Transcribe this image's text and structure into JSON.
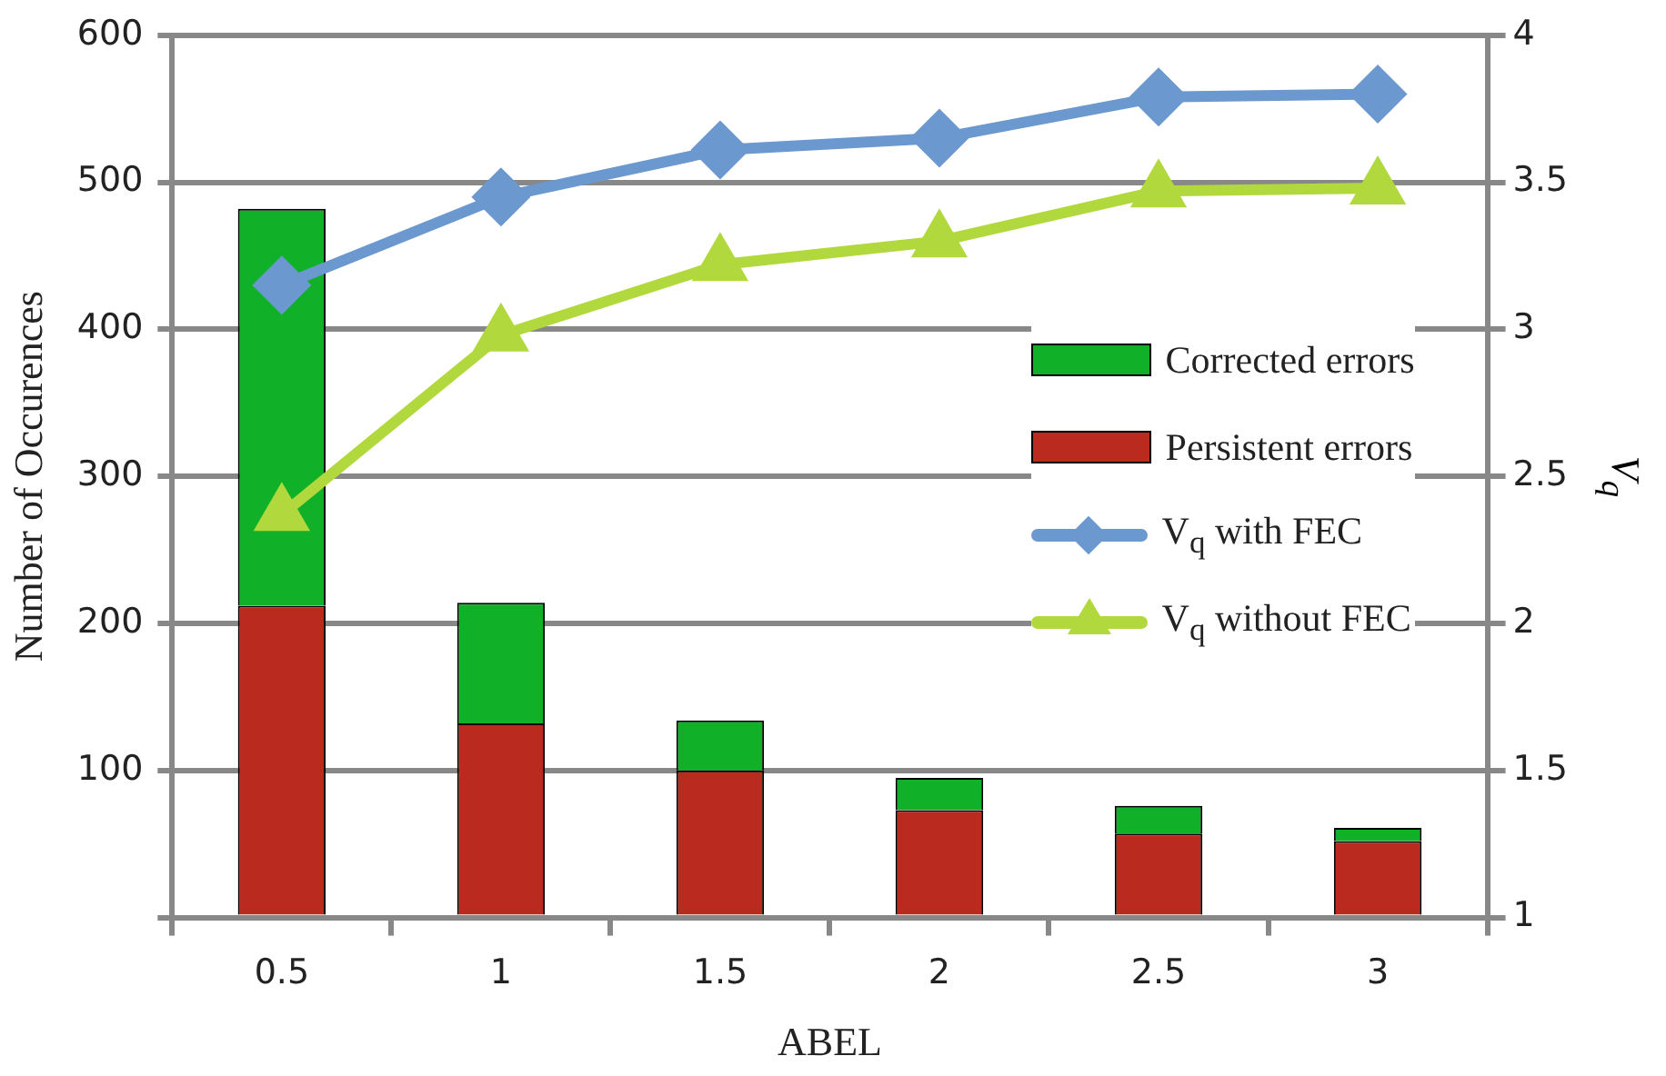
{
  "chart_data": {
    "type": "bar",
    "stacked": true,
    "xlabel": "ABEL",
    "ylabel": "Number of Occurences",
    "y2label": "V$_{q}$",
    "categories": [
      "0.5",
      "1",
      "1.5",
      "2",
      "2.5",
      "3"
    ],
    "series": [
      {
        "name": "Persistent errors",
        "color": "#bb2a1e",
        "values": [
          212,
          132,
          100,
          73,
          57,
          52
        ]
      },
      {
        "name": "Corrected errors",
        "color": "#10b128",
        "values": [
          270,
          82,
          34,
          22,
          19,
          9
        ]
      },
      {
        "name": "V$_{q}$ with FEC",
        "type": "line",
        "axis": "y2",
        "marker": "diamond",
        "color": "#6b98cf",
        "values": [
          3.15,
          3.45,
          3.61,
          3.65,
          3.79,
          3.8
        ]
      },
      {
        "name": "V$_{q}$ without FEC",
        "type": "line",
        "axis": "y2",
        "marker": "triangle",
        "color": "#b1d93d",
        "values": [
          2.37,
          2.98,
          3.22,
          3.3,
          3.47,
          3.48
        ]
      }
    ],
    "ylim": [
      0,
      600
    ],
    "yticks": [
      {
        "value": 0,
        "label": null
      },
      100,
      200,
      300,
      400,
      500,
      600
    ],
    "y2lim": [
      1,
      4
    ],
    "y2ticks": [
      1,
      1.5,
      2,
      2.5,
      3,
      3.5,
      4
    ],
    "grid": "y",
    "legend": "right"
  }
}
